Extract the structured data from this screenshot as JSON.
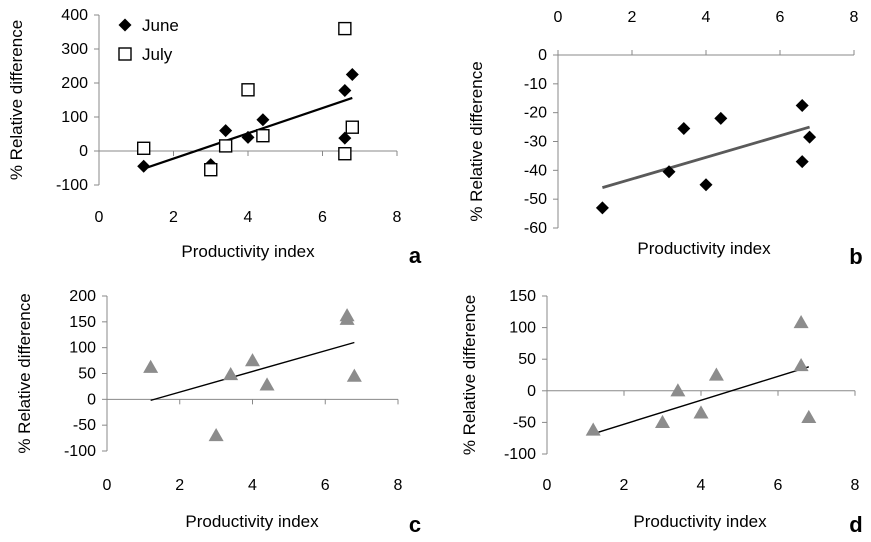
{
  "chart_data": [
    {
      "panel": "a",
      "type": "scatter",
      "xlabel": "Productivity index",
      "ylabel": "% Relative difference",
      "xlim": [
        0,
        8
      ],
      "ylim": [
        -100,
        400
      ],
      "xticks": [
        "0",
        "2",
        "4",
        "6",
        "8"
      ],
      "yticks": [
        "-100",
        "0",
        "100",
        "200",
        "300",
        "400"
      ],
      "x_axis_position": "bottom",
      "legend_placement": "top-left",
      "series": [
        {
          "name": "June",
          "marker": "diamond-filled",
          "color": "#000000",
          "points": [
            [
              1.2,
              -45
            ],
            [
              3.0,
              -40
            ],
            [
              3.4,
              60
            ],
            [
              4.0,
              40
            ],
            [
              4.4,
              92
            ],
            [
              6.6,
              178
            ],
            [
              6.6,
              38
            ],
            [
              6.8,
              225
            ]
          ]
        },
        {
          "name": "July",
          "marker": "square-open",
          "color": "#000000",
          "points": [
            [
              1.2,
              8
            ],
            [
              3.0,
              -55
            ],
            [
              3.4,
              15
            ],
            [
              4.0,
              180
            ],
            [
              4.4,
              45
            ],
            [
              6.6,
              360
            ],
            [
              6.6,
              -8
            ],
            [
              6.8,
              70
            ]
          ]
        }
      ],
      "trendline": {
        "x": [
          1.2,
          6.8
        ],
        "y": [
          -52,
          156
        ],
        "color": "#000000"
      }
    },
    {
      "panel": "b",
      "type": "scatter",
      "xlabel": "Productivity index",
      "ylabel": "% Relative difference",
      "xlim": [
        0,
        8
      ],
      "ylim": [
        -60,
        0
      ],
      "xticks": [
        "0",
        "2",
        "4",
        "6",
        "8"
      ],
      "yticks": [
        "-60",
        "-50",
        "-40",
        "-30",
        "-20",
        "-10",
        "0"
      ],
      "x_axis_position": "top",
      "series": [
        {
          "marker": "diamond-filled",
          "color": "#000000",
          "points": [
            [
              1.2,
              -53
            ],
            [
              3.0,
              -40.5
            ],
            [
              3.4,
              -25.5
            ],
            [
              4.0,
              -45
            ],
            [
              4.4,
              -22
            ],
            [
              6.6,
              -17.5
            ],
            [
              6.6,
              -37
            ],
            [
              6.8,
              -28.5
            ]
          ]
        }
      ],
      "trendline": {
        "x": [
          1.2,
          6.8
        ],
        "y": [
          -46,
          -25
        ],
        "color": "#5a5a5a"
      }
    },
    {
      "panel": "c",
      "type": "scatter",
      "xlabel": "Productivity index",
      "ylabel": "% Relative difference",
      "xlim": [
        0,
        8
      ],
      "ylim": [
        -100,
        200
      ],
      "xticks": [
        "0",
        "2",
        "4",
        "6",
        "8"
      ],
      "yticks": [
        "-100",
        "-50",
        "0",
        "50",
        "100",
        "150",
        "200"
      ],
      "x_axis_position": "bottom",
      "series": [
        {
          "marker": "triangle-filled",
          "color": "#8c8c8c",
          "points": [
            [
              1.2,
              62
            ],
            [
              3.0,
              -70
            ],
            [
              3.4,
              48
            ],
            [
              4.0,
              75
            ],
            [
              4.4,
              28
            ],
            [
              6.6,
              162
            ],
            [
              6.6,
              155
            ],
            [
              6.8,
              45
            ]
          ]
        }
      ],
      "trendline": {
        "x": [
          1.2,
          6.8
        ],
        "y": [
          -2,
          110
        ],
        "color": "#000000"
      }
    },
    {
      "panel": "d",
      "type": "scatter",
      "xlabel": "Productivity index",
      "ylabel": "% Relative difference",
      "xlim": [
        0,
        8
      ],
      "ylim": [
        -100,
        150
      ],
      "xticks": [
        "0",
        "2",
        "4",
        "6",
        "8"
      ],
      "yticks": [
        "-100",
        "-50",
        "0",
        "50",
        "100",
        "150"
      ],
      "x_axis_position": "bottom",
      "series": [
        {
          "marker": "triangle-filled",
          "color": "#8c8c8c",
          "points": [
            [
              1.2,
              -62
            ],
            [
              3.0,
              -50
            ],
            [
              3.4,
              0
            ],
            [
              4.0,
              -35
            ],
            [
              4.4,
              25
            ],
            [
              6.6,
              108
            ],
            [
              6.6,
              40
            ],
            [
              6.8,
              -42
            ]
          ]
        }
      ],
      "trendline": {
        "x": [
          1.2,
          6.8
        ],
        "y": [
          -68,
          38
        ],
        "color": "#000000"
      }
    }
  ]
}
